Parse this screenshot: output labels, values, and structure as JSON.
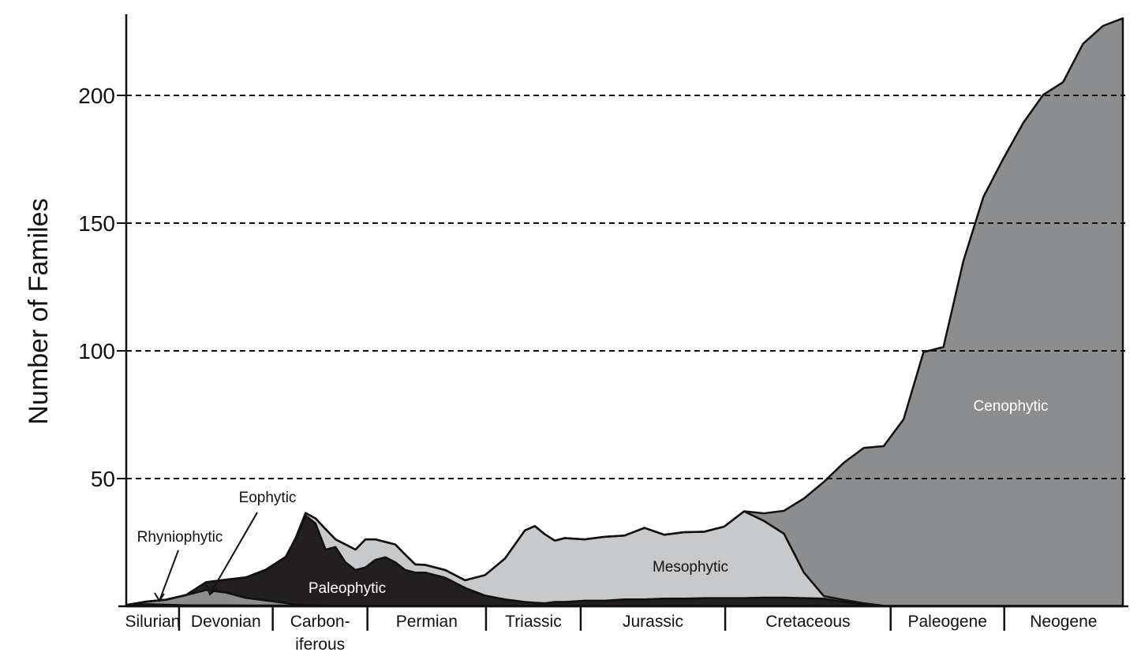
{
  "chart_data": {
    "type": "area",
    "stacked": true,
    "title": "",
    "xlabel": "",
    "ylabel": "Number of Familes",
    "ylim": [
      0,
      230
    ],
    "yticks": [
      50,
      100,
      150,
      200
    ],
    "grid": "dashed horizontal lines at y ticks",
    "legend": "none (series labeled inline)",
    "x_axis_periods": [
      {
        "label": "Silurian",
        "start": 0,
        "end": 5.3
      },
      {
        "label": "Devonian",
        "start": 5.3,
        "end": 14.7
      },
      {
        "label": "Carbon-",
        "label2": "iferous",
        "start": 14.7,
        "end": 24.2
      },
      {
        "label": "Permian",
        "start": 24.2,
        "end": 36.1
      },
      {
        "label": "Triassic",
        "start": 36.1,
        "end": 45.6
      },
      {
        "label": "Jurassic",
        "start": 45.6,
        "end": 60.1
      },
      {
        "label": "Cretaceous",
        "start": 60.1,
        "end": 76.7
      },
      {
        "label": "Paleogene",
        "start": 76.7,
        "end": 88.1
      },
      {
        "label": "Neogene",
        "start": 88.1,
        "end": 100
      }
    ],
    "x": [
      0,
      2,
      4,
      6,
      8,
      10,
      12,
      14,
      16,
      17,
      18,
      19,
      20,
      21,
      22,
      23,
      24,
      25,
      26,
      27,
      28,
      29,
      30,
      32,
      34,
      36,
      38,
      40,
      41,
      42,
      43,
      44,
      46,
      48,
      50,
      52,
      54,
      56,
      58,
      60,
      62,
      64,
      66,
      68,
      70,
      72,
      74,
      76,
      78,
      80,
      82,
      84,
      86,
      88,
      90,
      92,
      94,
      96,
      98,
      100
    ],
    "series": [
      {
        "name": "Rhyniophytic",
        "color": "#ffffff",
        "values": [
          0.3,
          0.8,
          0.6,
          0.4,
          0.4,
          0.4,
          0.3,
          0.3,
          0.3,
          0.2,
          0.2,
          0.2,
          0.2,
          0.2,
          0.2,
          0.2,
          0.2,
          0.2,
          0.2,
          0.2,
          0.2,
          0.2,
          0.2,
          0.2,
          0.2,
          0.2,
          0.2,
          0.2,
          0.2,
          0.2,
          0.2,
          0.2,
          0.2,
          0.2,
          0.2,
          0.2,
          0.2,
          0.2,
          0.2,
          0.2,
          0.2,
          0.2,
          0.2,
          0.2,
          0.2,
          0.2,
          0.2,
          0.2,
          0.2,
          0.2,
          0.2,
          0.2,
          0.2,
          0.2,
          0.2,
          0.2,
          0.2,
          0.2,
          0.2,
          0.2
        ]
      },
      {
        "name": "Eophytic",
        "color": "#8c8d8f",
        "values": [
          0.2,
          1,
          2,
          4,
          6,
          5,
          3,
          2,
          1,
          0.5,
          0.3,
          0.2,
          0,
          0,
          0,
          0,
          0,
          0,
          0,
          0,
          0,
          0,
          0,
          0,
          0,
          0,
          0,
          0,
          0,
          0,
          0,
          0,
          0,
          0,
          0,
          0,
          0,
          0,
          0,
          0,
          0,
          0,
          0,
          0,
          0,
          0,
          0,
          0,
          0,
          0,
          0,
          0,
          0,
          0,
          0,
          0,
          0,
          0,
          0,
          0
        ]
      },
      {
        "name": "Paleophytic",
        "color": "#231f20",
        "values": [
          0,
          0,
          0,
          0,
          3,
          5,
          8,
          12,
          18,
          26,
          35,
          32,
          22,
          23,
          17,
          14,
          15,
          18,
          19,
          17,
          14,
          13,
          13,
          11,
          7,
          4,
          2.5,
          1.5,
          1.2,
          1,
          1.5,
          1.5,
          2,
          2,
          2.5,
          2.5,
          2.8,
          2.8,
          3,
          3,
          3,
          3.2,
          3.2,
          3,
          2.8,
          1.5,
          0.5,
          0,
          0,
          0,
          0,
          0,
          0,
          0,
          0,
          0,
          0,
          0,
          0,
          0
        ]
      },
      {
        "name": "Mesophytic",
        "color": "#c8c9cb",
        "values": [
          0,
          0,
          0,
          0,
          0,
          0,
          0,
          0,
          0,
          0,
          1,
          2,
          8,
          3,
          7,
          8,
          11,
          8,
          6,
          7,
          6,
          3.2,
          3,
          3,
          3,
          8,
          16,
          28,
          30,
          27,
          24,
          25,
          24,
          25,
          25,
          28,
          25,
          26,
          26,
          28,
          34,
          30,
          25,
          10,
          1,
          0.8,
          0.5,
          0,
          0,
          0,
          0,
          0,
          0,
          0,
          0,
          0,
          0,
          0,
          0,
          0
        ]
      },
      {
        "name": "Cenophytic",
        "color": "#8c8d8f",
        "values": [
          0,
          0,
          0,
          0,
          0,
          0,
          0,
          0,
          0,
          0,
          0,
          0,
          0,
          0,
          0,
          0,
          0,
          0,
          0,
          0,
          0,
          0,
          0,
          0,
          0,
          0,
          0,
          0,
          0,
          0,
          0,
          0,
          0,
          0,
          0,
          0,
          0,
          0,
          0,
          0,
          0,
          3,
          9,
          29,
          44.7,
          53.7,
          60.8,
          62.5,
          73,
          99.3,
          101.3,
          135,
          160,
          175,
          189,
          200,
          205,
          220,
          227,
          230
        ]
      }
    ],
    "annotations": [
      {
        "text": "Cenophytic"
      },
      {
        "text": "Mesophytic"
      },
      {
        "text": "Paleophytic"
      },
      {
        "text": "Eophytic"
      },
      {
        "text": "Rhyniophytic"
      }
    ]
  }
}
